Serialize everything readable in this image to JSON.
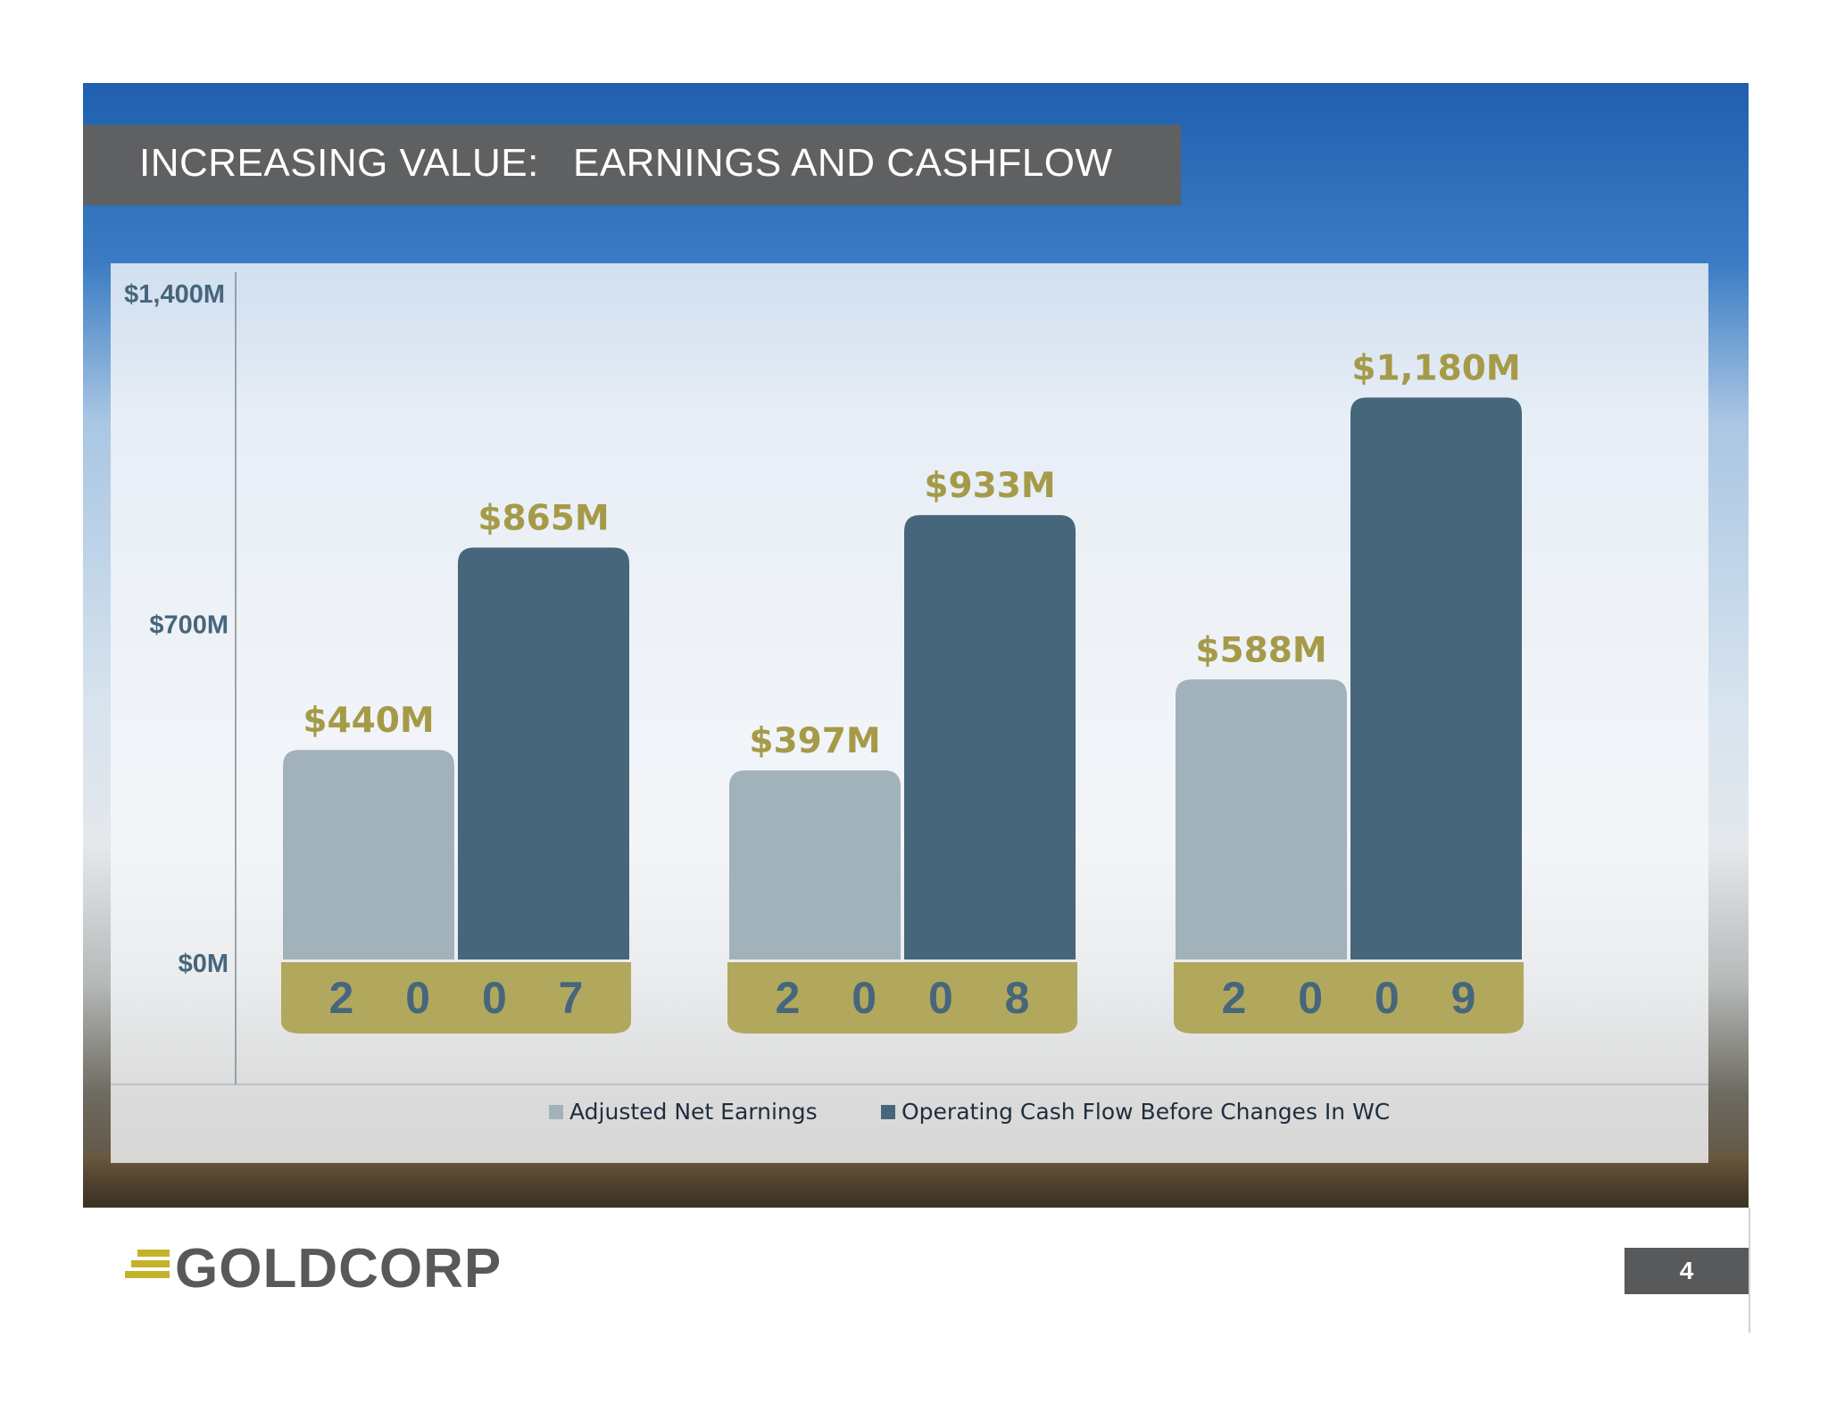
{
  "slide": {
    "title": "INCREASING VALUE:   EARNINGS AND CASHFLOW",
    "page_number": "4",
    "logo_text": "GOLDCORP"
  },
  "colors": {
    "title_band": "#5f6062",
    "series_earnings": "#a2b2bb",
    "series_cashflow": "#46667c",
    "accent_gold": "#a59a48",
    "year_band": "#b1a85e"
  },
  "chart_data": {
    "type": "bar",
    "categories": [
      "2007",
      "2008",
      "2009"
    ],
    "category_labels": [
      "2 0 0 7",
      "2 0 0 8",
      "2 0 0 9"
    ],
    "series": [
      {
        "name": "Adjusted Net Earnings",
        "values": [
          440,
          397,
          588
        ],
        "labels": [
          "$440M",
          "$397M",
          "$588M"
        ]
      },
      {
        "name": "Operating Cash Flow Before Changes In WC",
        "values": [
          865,
          933,
          1180
        ],
        "labels": [
          "$865M",
          "$933M",
          "$1,180M"
        ]
      }
    ],
    "ylim": [
      0,
      1400
    ],
    "yticks": [
      {
        "value": 0,
        "label": "$0M"
      },
      {
        "value": 700,
        "label": "$700M"
      },
      {
        "value": 1400,
        "label": "$1,400M"
      }
    ],
    "legend_position": "bottom",
    "grid": false
  }
}
